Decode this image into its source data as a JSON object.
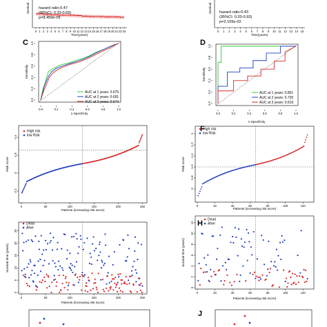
{
  "panel_labels": [
    "C",
    "D",
    "F",
    "H",
    "J"
  ],
  "colors": {
    "red": "#d62728",
    "blue": "#1f3fbf",
    "green": "#33cc33",
    "km_band": "#f4a3a3"
  },
  "chart_data": [
    {
      "id": "A",
      "type": "line",
      "xlabel": "Time(years)",
      "ylabel": "Survival",
      "x_ticks": [
        0,
        1,
        2,
        3,
        4,
        5,
        6,
        7,
        8,
        9,
        10,
        11,
        12,
        13,
        14,
        15,
        16,
        17,
        18,
        19,
        20,
        21,
        22,
        23
      ],
      "annotations": [
        "hazard ratio:0.47",
        "(95%CI: 0.33-0.69)",
        "p=8.459e-05"
      ],
      "series": [
        {
          "color": "red",
          "x": [
            0,
            2,
            4,
            6,
            8,
            10,
            12,
            14,
            16,
            18,
            20,
            22,
            23
          ],
          "y": [
            0.4,
            0.38,
            0.37,
            0.36,
            0.36,
            0.35,
            0.33,
            0.32,
            0.32,
            0.31,
            0.31,
            0.3,
            0.3
          ]
        }
      ]
    },
    {
      "id": "B",
      "type": "line",
      "xlabel": "Time(years)",
      "ylabel": "Survival",
      "x_ticks": [
        0,
        1,
        2,
        3,
        4,
        5,
        6,
        7,
        8,
        9,
        10,
        11,
        12,
        13,
        14,
        15
      ],
      "annotations": [
        "hazard ratio:0.43",
        "(95%CI: 0.20-0.93)",
        "p=2.109e-02"
      ],
      "series": []
    },
    {
      "id": "C",
      "type": "line",
      "xlabel": "1-Specificity",
      "ylabel": "Sensitivity",
      "x_ticks": [
        "0.0",
        "0.2",
        "0.4",
        "0.6",
        "0.8",
        "1.0"
      ],
      "y_ticks": [
        "0.0",
        "0.2",
        "0.4",
        "0.6",
        "0.8",
        "1.0"
      ],
      "xlim": [
        0,
        1
      ],
      "ylim": [
        0,
        1
      ],
      "legend": [
        "AUC at 1 years: 0.675",
        "AUC at 2 years: 0.691",
        "AUC at 3 years: 0.674"
      ],
      "series": [
        {
          "color": "green",
          "x": [
            0,
            0.01,
            0.03,
            0.06,
            0.08,
            0.1,
            0.15,
            0.22,
            0.28,
            0.35,
            0.45,
            0.55,
            0.62,
            0.7,
            0.78,
            0.88,
            0.95,
            1.0
          ],
          "y": [
            0,
            0.08,
            0.2,
            0.32,
            0.42,
            0.5,
            0.55,
            0.6,
            0.63,
            0.65,
            0.7,
            0.74,
            0.78,
            0.84,
            0.88,
            0.94,
            0.98,
            1.0
          ]
        },
        {
          "color": "blue",
          "x": [
            0,
            0.02,
            0.04,
            0.07,
            0.1,
            0.14,
            0.2,
            0.28,
            0.36,
            0.46,
            0.56,
            0.64,
            0.72,
            0.8,
            0.88,
            0.95,
            1.0
          ],
          "y": [
            0,
            0.1,
            0.22,
            0.33,
            0.42,
            0.5,
            0.56,
            0.6,
            0.64,
            0.68,
            0.73,
            0.78,
            0.84,
            0.89,
            0.94,
            0.98,
            1.0
          ]
        },
        {
          "color": "red",
          "x": [
            0,
            0.02,
            0.05,
            0.08,
            0.11,
            0.16,
            0.22,
            0.3,
            0.38,
            0.48,
            0.58,
            0.66,
            0.74,
            0.82,
            0.9,
            0.96,
            1.0
          ],
          "y": [
            0,
            0.09,
            0.2,
            0.3,
            0.4,
            0.48,
            0.54,
            0.59,
            0.63,
            0.67,
            0.72,
            0.77,
            0.83,
            0.88,
            0.93,
            0.98,
            1.0
          ]
        }
      ]
    },
    {
      "id": "D",
      "type": "line",
      "xlabel": "1-Specificity",
      "ylabel": "Sensitivity",
      "x_ticks": [
        "0.0",
        "0.2",
        "0.4",
        "0.6",
        "0.8",
        "1.0"
      ],
      "y_ticks": [
        "0.0",
        "0.2",
        "0.4",
        "0.6",
        "0.8",
        "1.0"
      ],
      "xlim": [
        0,
        1
      ],
      "ylim": [
        0,
        1
      ],
      "legend": [
        "AUC at 1 years: 0.851",
        "AUC at 2 years: 0.720",
        "AUC at 3 years: 0.619"
      ],
      "series": [
        {
          "color": "green",
          "x": [
            0,
            0,
            0.04,
            0.04,
            0.55,
            0.55,
            1.0
          ],
          "y": [
            0,
            0.72,
            0.72,
            1.0,
            1.0,
            1.0,
            1.0
          ]
        },
        {
          "color": "blue",
          "x": [
            0,
            0,
            0.12,
            0.12,
            0.28,
            0.28,
            0.45,
            0.45,
            0.62,
            0.62,
            0.8,
            0.8,
            1.0
          ],
          "y": [
            0,
            0.3,
            0.3,
            0.55,
            0.55,
            0.62,
            0.62,
            0.75,
            0.75,
            0.88,
            0.88,
            1.0,
            1.0
          ]
        },
        {
          "color": "red",
          "x": [
            0,
            0,
            0.2,
            0.2,
            0.38,
            0.38,
            0.55,
            0.55,
            0.72,
            0.72,
            0.86,
            0.86,
            1.0
          ],
          "y": [
            0,
            0.22,
            0.22,
            0.4,
            0.4,
            0.48,
            0.48,
            0.6,
            0.6,
            0.74,
            0.74,
            0.9,
            1.0
          ]
        }
      ]
    },
    {
      "id": "E",
      "type": "scatter",
      "xlabel": "Patients (increasing risk socre)",
      "ylabel": "Risk score",
      "x_ticks": [
        0,
        50,
        100,
        150,
        200,
        250
      ],
      "xlim": [
        0,
        255
      ],
      "y_ticks": [
        -2.2,
        -2.0,
        -1.8,
        -1.6
      ],
      "ylim": [
        -2.3,
        -1.5
      ],
      "legend": [
        "High risk",
        "low Risk"
      ],
      "cutoff_x": 126,
      "cutoff_y": -1.745,
      "n": 250,
      "risk_min": -2.22,
      "risk_max": -1.57
    },
    {
      "id": "F",
      "type": "scatter",
      "xlabel": "Patients (increasing risk socre)",
      "ylabel": "Risk score",
      "x_ticks": [
        0,
        20,
        40,
        60,
        80,
        100,
        120
      ],
      "xlim": [
        0,
        130
      ],
      "y_ticks": [
        -2.0,
        -1.8,
        -1.6,
        -1.4,
        -1.2,
        -1.0
      ],
      "ylim": [
        -2.2,
        -0.9
      ],
      "legend": [
        "High risk",
        "low Risk"
      ],
      "cutoff_x": 66,
      "cutoff_y": -1.6,
      "n": 125,
      "risk_min": -2.12,
      "risk_max": -1.02
    },
    {
      "id": "G",
      "type": "scatter",
      "xlabel": "Patients (increasing risk socre)",
      "ylabel": "Survival time (years)",
      "x_ticks": [
        0,
        50,
        100,
        150,
        200,
        250
      ],
      "xlim": [
        0,
        255
      ],
      "y_ticks": [
        0,
        5,
        10,
        15,
        20,
        25
      ],
      "ylim": [
        0,
        28
      ],
      "legend": [
        "Dead",
        "Alive"
      ],
      "cutoff_x": 126,
      "n": 250
    },
    {
      "id": "H",
      "type": "scatter",
      "xlabel": "Patients (increasing risk socre)",
      "ylabel": "Survival time (years)",
      "x_ticks": [
        0,
        20,
        40,
        60,
        80,
        100,
        120
      ],
      "xlim": [
        0,
        130
      ],
      "y_ticks": [
        0,
        2,
        4,
        6,
        8,
        10,
        12
      ],
      "ylim": [
        0,
        13
      ],
      "legend": [
        "Dead",
        "Alive"
      ],
      "cutoff_x": 66,
      "n": 125
    }
  ]
}
